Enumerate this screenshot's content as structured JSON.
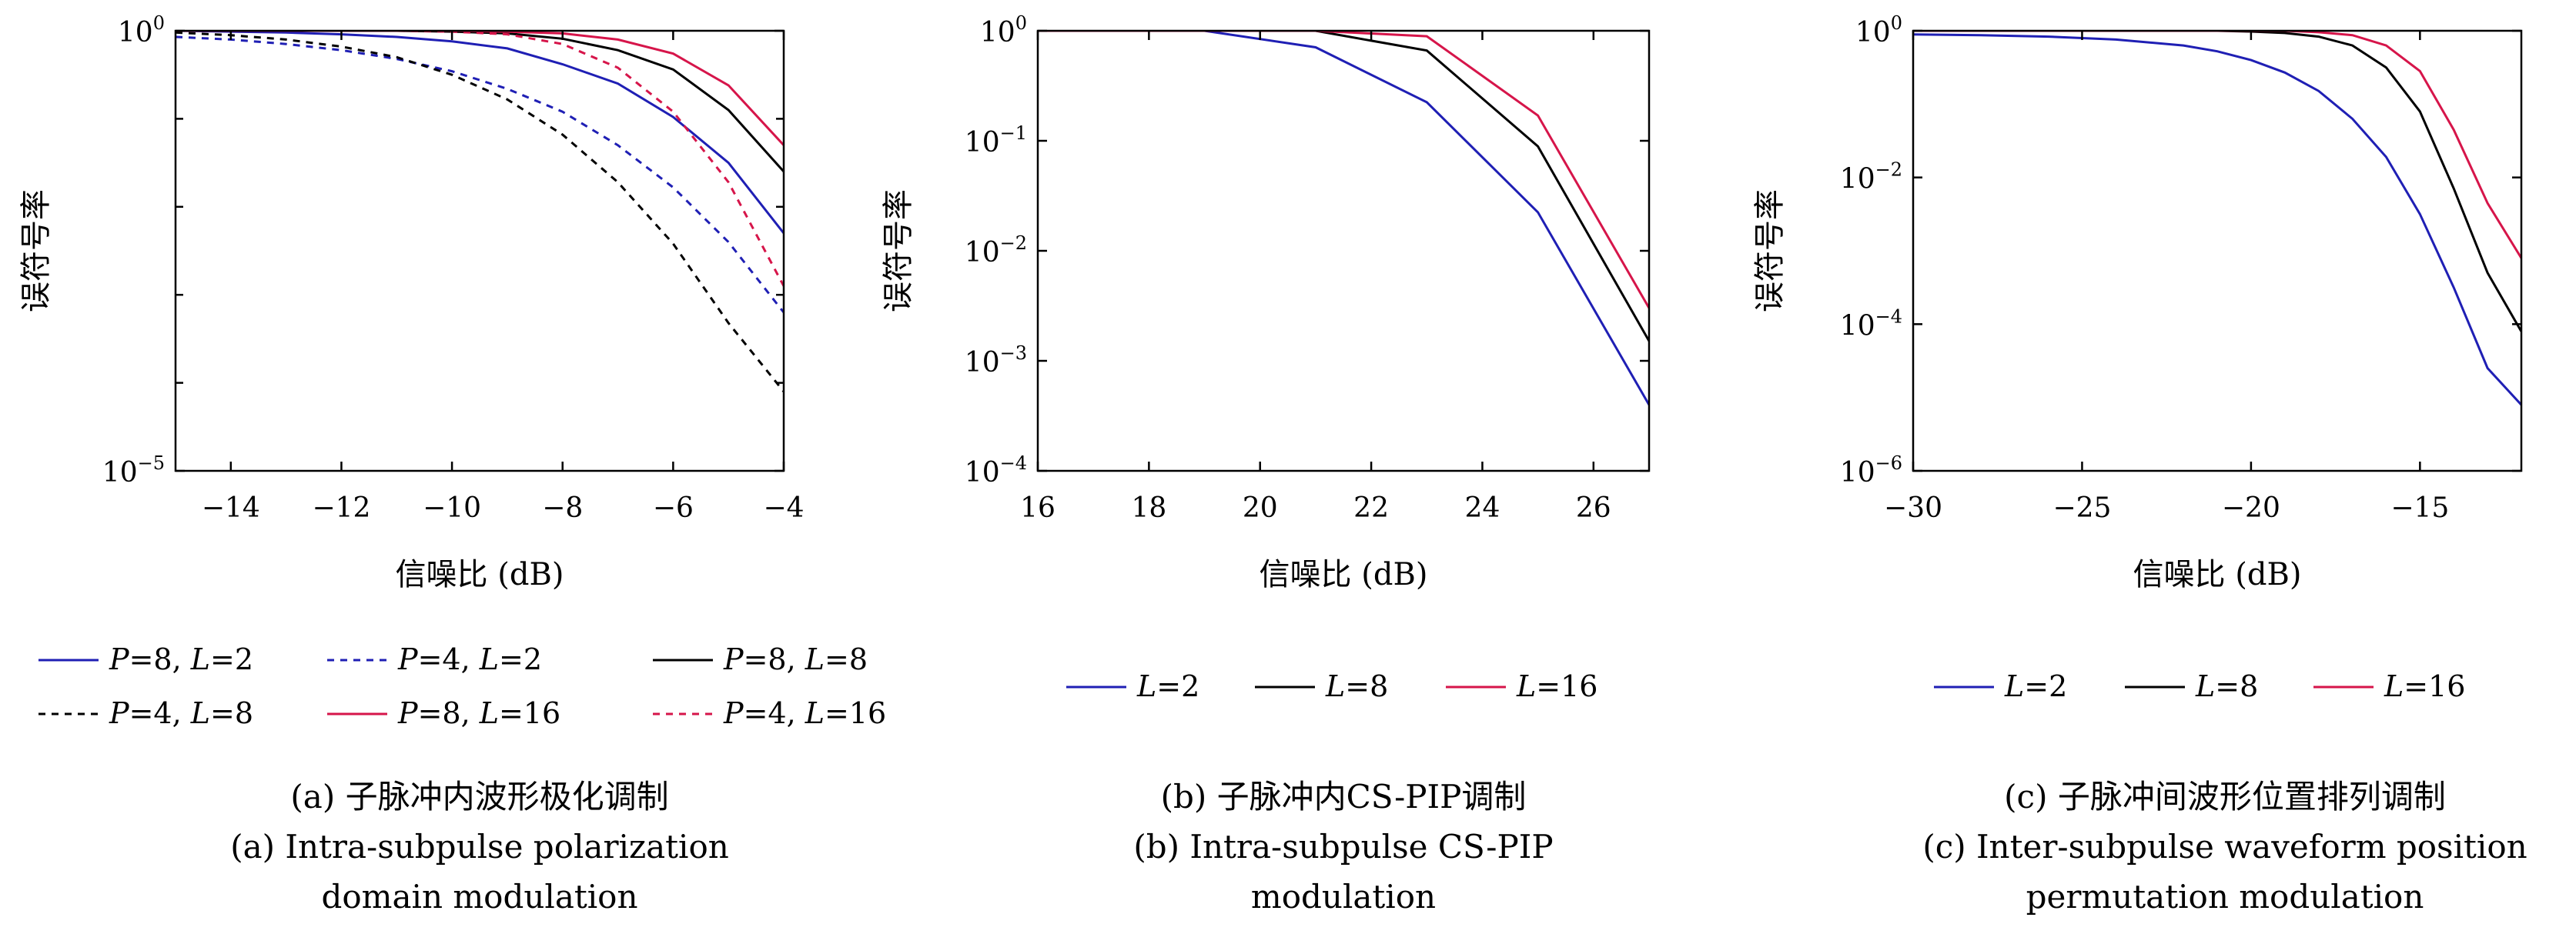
{
  "colors": {
    "blue": "#1f1fb4",
    "black": "#000000",
    "red": "#d6154a",
    "axis": "#000000"
  },
  "chart_data": [
    {
      "type": "line",
      "ylabel": "误符号率",
      "xlabel": "信噪比 (dB)",
      "yscale": "log",
      "xlim": [
        -15,
        -4
      ],
      "ylim_exp": [
        -5,
        0
      ],
      "xticks": [
        -14,
        -12,
        -10,
        -8,
        -6,
        -4
      ],
      "xtick_labels": [
        "−14",
        "−12",
        "−10",
        "−8",
        "−6",
        "−4"
      ],
      "ytick_labels": [
        {
          "exp": 0,
          "label": "10",
          "sup": "0"
        },
        {
          "exp": -5,
          "label": "10",
          "sup": "−5"
        }
      ],
      "yticks_minor_exp": [
        -1,
        -2,
        -3,
        -4
      ],
      "x": [
        -15,
        -14,
        -13,
        -12,
        -11,
        -10,
        -9,
        -8,
        -7,
        -6,
        -5,
        -4
      ],
      "series": [
        {
          "name": "P=8, L=2",
          "p": "8",
          "l": "2",
          "color": "blue",
          "dash": false,
          "logvalues": [
            0,
            -0.01,
            -0.02,
            -0.04,
            -0.07,
            -0.12,
            -0.2,
            -0.38,
            -0.6,
            -0.98,
            -1.5,
            -2.3
          ]
        },
        {
          "name": "P=4, L=2",
          "p": "4",
          "l": "2",
          "color": "blue",
          "dash": true,
          "logvalues": [
            -0.07,
            -0.1,
            -0.15,
            -0.22,
            -0.32,
            -0.46,
            -0.66,
            -0.92,
            -1.3,
            -1.78,
            -2.4,
            -3.2
          ]
        },
        {
          "name": "P=8, L=8",
          "p": "8",
          "l": "8",
          "color": "black",
          "dash": false,
          "logvalues": [
            0,
            0,
            0,
            0,
            0,
            -0.01,
            -0.03,
            -0.09,
            -0.22,
            -0.44,
            -0.9,
            -1.6
          ]
        },
        {
          "name": "P=4, L=8",
          "p": "4",
          "l": "8",
          "color": "black",
          "dash": true,
          "logvalues": [
            -0.02,
            -0.05,
            -0.1,
            -0.18,
            -0.3,
            -0.5,
            -0.78,
            -1.18,
            -1.72,
            -2.42,
            -3.32,
            -4.1
          ]
        },
        {
          "name": "P=8, L=16",
          "p": "8",
          "l": "16",
          "color": "red",
          "dash": false,
          "logvalues": [
            0,
            0,
            0,
            0,
            0,
            0,
            -0.01,
            -0.03,
            -0.1,
            -0.26,
            -0.62,
            -1.3
          ]
        },
        {
          "name": "P=4, L=16",
          "p": "4",
          "l": "16",
          "color": "red",
          "dash": true,
          "logvalues": [
            0,
            0,
            0,
            0,
            0,
            -0.01,
            -0.04,
            -0.15,
            -0.42,
            -0.92,
            -1.72,
            -2.9
          ]
        }
      ],
      "caption_cn": "(a) 子脉冲内波形极化调制",
      "caption_en": [
        "(a) Intra-subpulse polarization",
        "domain modulation"
      ]
    },
    {
      "type": "line",
      "ylabel": "误符号率",
      "xlabel": "信噪比 (dB)",
      "yscale": "log",
      "xlim": [
        16,
        27
      ],
      "ylim_exp": [
        -4,
        0
      ],
      "xticks": [
        16,
        18,
        20,
        22,
        24,
        26
      ],
      "xtick_labels": [
        "16",
        "18",
        "20",
        "22",
        "24",
        "26"
      ],
      "ytick_labels": [
        {
          "exp": 0,
          "label": "10",
          "sup": "0"
        },
        {
          "exp": -1,
          "label": "10",
          "sup": "−1"
        },
        {
          "exp": -2,
          "label": "10",
          "sup": "−2"
        },
        {
          "exp": -3,
          "label": "10",
          "sup": "−3"
        },
        {
          "exp": -4,
          "label": "10",
          "sup": "−4"
        }
      ],
      "yticks_minor_exp": [],
      "x": [
        16,
        19,
        21,
        23,
        25,
        27
      ],
      "series": [
        {
          "name": "L=2",
          "l": "2",
          "color": "blue",
          "dash": false,
          "logvalues": [
            0,
            0,
            -0.15,
            -0.65,
            -1.65,
            -3.4
          ]
        },
        {
          "name": "L=8",
          "l": "8",
          "color": "black",
          "dash": false,
          "logvalues": [
            0,
            0,
            0,
            -0.18,
            -1.05,
            -2.82
          ]
        },
        {
          "name": "L=16",
          "l": "16",
          "color": "red",
          "dash": false,
          "logvalues": [
            0,
            0,
            0,
            -0.05,
            -0.77,
            -2.52
          ]
        }
      ],
      "caption_cn": "(b) 子脉冲内CS-PIP调制",
      "caption_en": [
        "(b) Intra-subpulse CS-PIP",
        "modulation"
      ]
    },
    {
      "type": "line",
      "ylabel": "误符号率",
      "xlabel": "信噪比 (dB)",
      "yscale": "log",
      "xlim": [
        -30,
        -12
      ],
      "ylim_exp": [
        -6,
        0
      ],
      "xticks": [
        -30,
        -25,
        -20,
        -15
      ],
      "xtick_labels": [
        "−30",
        "−25",
        "−20",
        "−15"
      ],
      "ytick_labels": [
        {
          "exp": 0,
          "label": "10",
          "sup": "0"
        },
        {
          "exp": -2,
          "label": "10",
          "sup": "−2"
        },
        {
          "exp": -4,
          "label": "10",
          "sup": "−4"
        },
        {
          "exp": -6,
          "label": "10",
          "sup": "−6"
        }
      ],
      "yticks_minor_exp": [],
      "x": [
        -30,
        -28,
        -26,
        -24,
        -22,
        -21,
        -20,
        -19,
        -18,
        -17,
        -16,
        -15,
        -14,
        -13,
        -12
      ],
      "series": [
        {
          "name": "L=2",
          "l": "2",
          "color": "blue",
          "dash": false,
          "logvalues": [
            -0.05,
            -0.06,
            -0.08,
            -0.12,
            -0.2,
            -0.28,
            -0.4,
            -0.57,
            -0.82,
            -1.2,
            -1.72,
            -2.5,
            -3.5,
            -4.6,
            -5.1
          ]
        },
        {
          "name": "L=8",
          "l": "8",
          "color": "black",
          "dash": false,
          "logvalues": [
            0,
            0,
            0,
            0,
            0,
            0,
            -0.01,
            -0.03,
            -0.08,
            -0.2,
            -0.5,
            -1.1,
            -2.15,
            -3.3,
            -4.1
          ]
        },
        {
          "name": "L=16",
          "l": "16",
          "color": "red",
          "dash": false,
          "logvalues": [
            0,
            0,
            0,
            0,
            0,
            0,
            0,
            0,
            -0.02,
            -0.06,
            -0.2,
            -0.55,
            -1.35,
            -2.35,
            -3.1
          ]
        }
      ],
      "caption_cn": "(c) 子脉冲间波形位置排列调制",
      "caption_en": [
        "(c) Inter-subpulse waveform position",
        "permutation modulation"
      ]
    }
  ]
}
